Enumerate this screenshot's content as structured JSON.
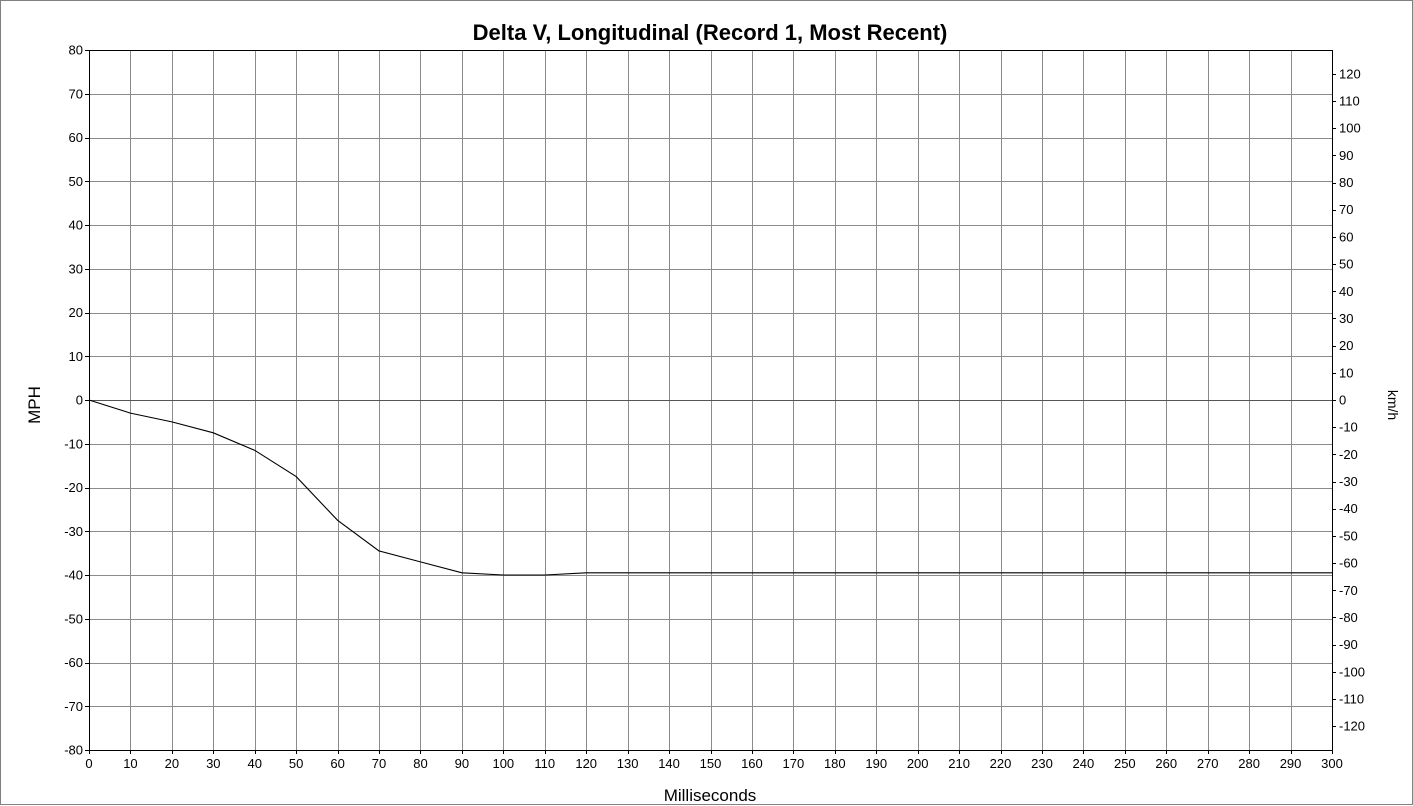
{
  "chart_data": {
    "type": "line",
    "title": "Delta V, Longitudinal (Record 1, Most Recent)",
    "xlabel": "Milliseconds",
    "ylabel": "MPH",
    "ylabel_right": "km/h",
    "xlim": [
      0,
      300
    ],
    "ylim": [
      -80,
      80
    ],
    "ylim_right": [
      -128.75,
      128.75
    ],
    "x_ticks": [
      "0",
      "10",
      "20",
      "30",
      "40",
      "50",
      "60",
      "70",
      "80",
      "90",
      "100",
      "110",
      "120",
      "130",
      "140",
      "150",
      "160",
      "170",
      "180",
      "190",
      "200",
      "210",
      "220",
      "230",
      "240",
      "250",
      "260",
      "270",
      "280",
      "290",
      "300"
    ],
    "y_ticks": [
      "80",
      "70",
      "60",
      "50",
      "40",
      "30",
      "20",
      "10",
      "0",
      "-10",
      "-20",
      "-30",
      "-40",
      "-50",
      "-60",
      "-70",
      "-80"
    ],
    "y_ticks_right": [
      "120",
      "110",
      "100",
      "90",
      "80",
      "70",
      "60",
      "50",
      "40",
      "30",
      "20",
      "10",
      "0",
      "-10",
      "-20",
      "-30",
      "-40",
      "-50",
      "-60",
      "-70",
      "-80",
      "-90",
      "-100",
      "-110",
      "-120"
    ],
    "grid": true,
    "series": [
      {
        "x": [
          0,
          10,
          20,
          30,
          40,
          50,
          60,
          70,
          80,
          90,
          100,
          110,
          120,
          130,
          140,
          150,
          160,
          170,
          180,
          190,
          200,
          210,
          220,
          230,
          240,
          250,
          260,
          270,
          280,
          290,
          300
        ],
        "values": [
          0,
          -3,
          -5,
          -7.5,
          -11.5,
          -17.5,
          -27.5,
          -34.5,
          -37,
          -39.5,
          -40,
          -40,
          -39.5,
          -39.5,
          -39.5,
          -39.5,
          -39.5,
          -39.5,
          -39.5,
          -39.5,
          -39.5,
          -39.5,
          -39.5,
          -39.5,
          -39.5,
          -39.5,
          -39.5,
          -39.5,
          -39.5,
          -39.5,
          -39.5
        ],
        "color": "#000000"
      }
    ],
    "colors": {
      "grid": "#8c8c8c",
      "zero_line": "#555555",
      "frame": "#000000",
      "series": "#000000"
    }
  }
}
